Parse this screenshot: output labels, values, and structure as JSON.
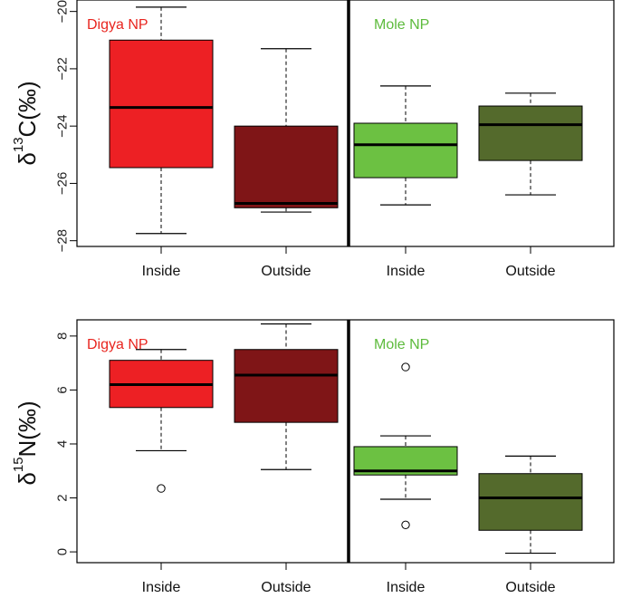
{
  "chart_data": [
    {
      "type": "boxplot",
      "panel": "top",
      "ylabel_symbol": "δ",
      "ylabel_superscript": "13",
      "ylabel_element": "C(‰)",
      "ylim": [
        -28,
        -20
      ],
      "yticks": [
        -28,
        -26,
        -24,
        -22,
        -20
      ],
      "ytick_labels": [
        "−28",
        "−26",
        "−24",
        "−22",
        "−20"
      ],
      "groups": [
        {
          "label": "Digya NP",
          "color": "#e8251f"
        },
        {
          "label": "Mole NP",
          "color": "#5dbb3c"
        }
      ],
      "boxes": [
        {
          "group": "Digya NP",
          "category": "Inside",
          "color": "#ed2024",
          "whisker_low": -27.75,
          "q1": -25.45,
          "median": -23.35,
          "q3": -21.0,
          "whisker_high": -19.85,
          "outliers": []
        },
        {
          "group": "Digya NP",
          "category": "Outside",
          "color": "#7f1517",
          "whisker_low": -27.0,
          "q1": -26.85,
          "median": -26.7,
          "q3": -24.0,
          "whisker_high": -21.3,
          "outliers": []
        },
        {
          "group": "Mole NP",
          "category": "Inside",
          "color": "#6cc142",
          "whisker_low": -26.75,
          "q1": -25.8,
          "median": -24.65,
          "q3": -23.9,
          "whisker_high": -22.6,
          "outliers": []
        },
        {
          "group": "Mole NP",
          "category": "Outside",
          "color": "#546a2c",
          "whisker_low": -26.4,
          "q1": -25.2,
          "median": -23.95,
          "q3": -23.3,
          "whisker_high": -22.85,
          "outliers": []
        }
      ]
    },
    {
      "type": "boxplot",
      "panel": "bottom",
      "ylabel_symbol": "δ",
      "ylabel_superscript": "15",
      "ylabel_element": "N(‰)",
      "ylim": [
        -0.4,
        8.6
      ],
      "yticks": [
        0,
        2,
        4,
        6,
        8
      ],
      "ytick_labels": [
        "0",
        "2",
        "4",
        "6",
        "8"
      ],
      "groups": [
        {
          "label": "Digya NP",
          "color": "#e8251f"
        },
        {
          "label": "Mole NP",
          "color": "#5dbb3c"
        }
      ],
      "boxes": [
        {
          "group": "Digya NP",
          "category": "Inside",
          "color": "#ed2024",
          "whisker_low": 3.75,
          "q1": 5.35,
          "median": 6.2,
          "q3": 7.1,
          "whisker_high": 7.5,
          "outliers": [
            2.35
          ]
        },
        {
          "group": "Digya NP",
          "category": "Outside",
          "color": "#7f1517",
          "whisker_low": 3.05,
          "q1": 4.8,
          "median": 6.55,
          "q3": 7.5,
          "whisker_high": 8.45,
          "outliers": []
        },
        {
          "group": "Mole NP",
          "category": "Inside",
          "color": "#6cc142",
          "whisker_low": 1.95,
          "q1": 2.85,
          "median": 3.0,
          "q3": 3.9,
          "whisker_high": 4.3,
          "outliers": [
            6.85,
            1.0
          ]
        },
        {
          "group": "Mole NP",
          "category": "Outside",
          "color": "#546a2c",
          "whisker_low": -0.05,
          "q1": 0.8,
          "median": 2.0,
          "q3": 2.9,
          "whisker_high": 3.55,
          "outliers": []
        }
      ]
    }
  ]
}
